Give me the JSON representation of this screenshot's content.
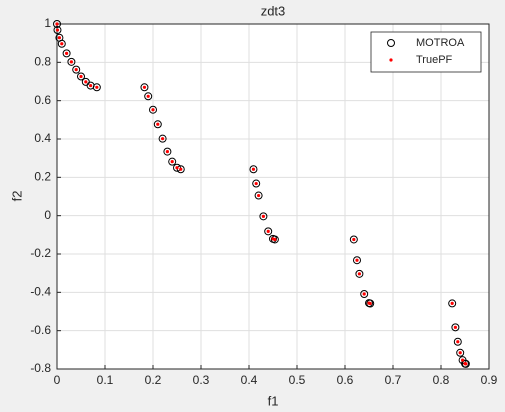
{
  "chart_data": {
    "type": "scatter",
    "title": "zdt3",
    "xlabel": "f1",
    "ylabel": "f2",
    "xlim": [
      0,
      0.9
    ],
    "ylim": [
      -0.8,
      1
    ],
    "xticks": [
      0,
      0.1,
      0.2,
      0.3,
      0.4,
      0.5,
      0.6,
      0.7,
      0.8,
      0.9
    ],
    "yticks": [
      -0.8,
      -0.6,
      -0.4,
      -0.2,
      0,
      0.2,
      0.4,
      0.6,
      0.8,
      1
    ],
    "grid": true,
    "legend": "top-right",
    "series": [
      {
        "name": "MOTROA",
        "color": "#000000",
        "marker": "open-circle",
        "x": [
          0,
          0.001,
          0.005,
          0.01,
          0.02,
          0.03,
          0.04,
          0.05,
          0.06,
          0.07,
          0.083,
          0.1822,
          0.19,
          0.2,
          0.21,
          0.22,
          0.23,
          0.24,
          0.25,
          0.2578,
          0.4093,
          0.415,
          0.42,
          0.43,
          0.44,
          0.45,
          0.4539,
          0.6184,
          0.625,
          0.63,
          0.64,
          0.65,
          0.6525,
          0.8233,
          0.83,
          0.835,
          0.84,
          0.845,
          0.85,
          0.8518
        ],
        "values": [
          1,
          0.9684,
          0.9285,
          0.8969,
          0.8468,
          0.8025,
          0.762,
          0.7264,
          0.698,
          0.6788,
          0.6697,
          0.6698,
          0.6228,
          0.5528,
          0.4768,
          0.4017,
          0.3343,
          0.2818,
          0.25,
          0.2422,
          0.2422,
          0.1676,
          0.105,
          -0.0036,
          -0.0818,
          -0.1208,
          -0.1242,
          -0.1242,
          -0.2325,
          -0.3034,
          -0.4087,
          -0.4562,
          -0.4583,
          -0.4578,
          -0.5825,
          -0.6578,
          -0.7154,
          -0.7538,
          -0.772,
          -0.7733
        ]
      },
      {
        "name": "TruePF",
        "color": "#ff0000",
        "marker": "dot",
        "x": [
          0,
          0.001,
          0.005,
          0.01,
          0.02,
          0.03,
          0.04,
          0.05,
          0.06,
          0.07,
          0.083,
          0.1822,
          0.19,
          0.2,
          0.21,
          0.22,
          0.23,
          0.24,
          0.25,
          0.2578,
          0.4093,
          0.415,
          0.42,
          0.43,
          0.44,
          0.45,
          0.4539,
          0.6184,
          0.625,
          0.63,
          0.64,
          0.65,
          0.6525,
          0.8233,
          0.83,
          0.835,
          0.84,
          0.845,
          0.85,
          0.8518
        ],
        "values": [
          1,
          0.9684,
          0.9285,
          0.8969,
          0.8468,
          0.8025,
          0.762,
          0.7264,
          0.698,
          0.6788,
          0.6697,
          0.6698,
          0.6228,
          0.5528,
          0.4768,
          0.4017,
          0.3343,
          0.2818,
          0.25,
          0.2422,
          0.2422,
          0.1676,
          0.105,
          -0.0036,
          -0.0818,
          -0.1208,
          -0.1242,
          -0.1242,
          -0.2325,
          -0.3034,
          -0.4087,
          -0.4562,
          -0.4583,
          -0.4578,
          -0.5825,
          -0.6578,
          -0.7154,
          -0.7538,
          -0.772,
          -0.7733
        ]
      }
    ]
  }
}
